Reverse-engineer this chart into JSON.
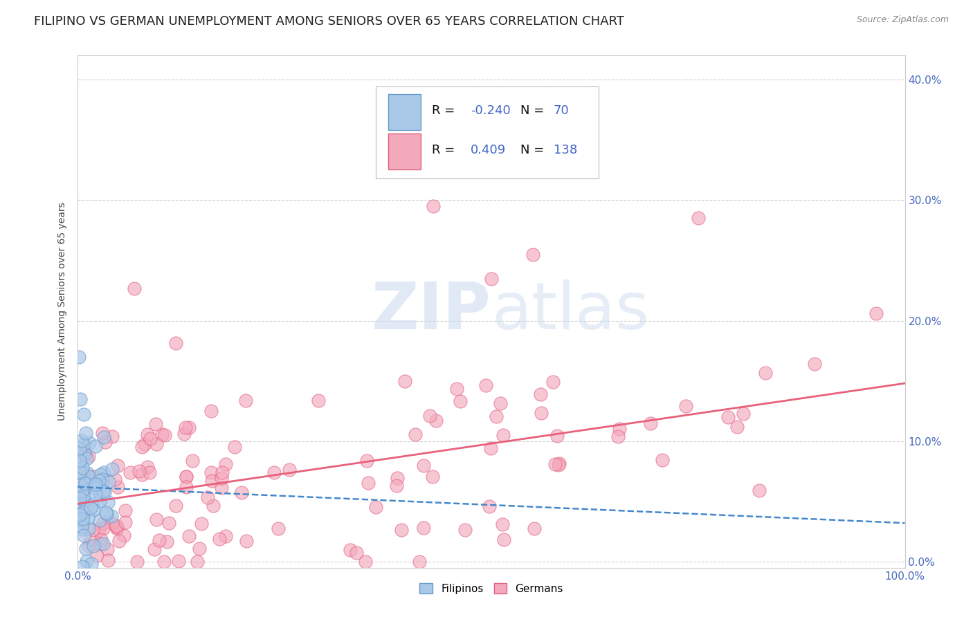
{
  "title": "FILIPINO VS GERMAN UNEMPLOYMENT AMONG SENIORS OVER 65 YEARS CORRELATION CHART",
  "source": "Source: ZipAtlas.com",
  "ylabel": "Unemployment Among Seniors over 65 years",
  "xlim": [
    0,
    1.0
  ],
  "ylim": [
    -0.005,
    0.42
  ],
  "xticks": [
    0.0,
    1.0
  ],
  "xticklabels": [
    "0.0%",
    "100.0%"
  ],
  "yticks": [
    0.0,
    0.1,
    0.2,
    0.3,
    0.4
  ],
  "yticklabels": [
    "0.0%",
    "10.0%",
    "20.0%",
    "30.0%",
    "40.0%"
  ],
  "filipino_color": "#aac8e8",
  "german_color": "#f4a8bc",
  "filipino_edge": "#6699cc",
  "german_edge": "#e06080",
  "trend_filipino_color": "#4488cc",
  "trend_german_color": "#e8607a",
  "R_filipino": -0.24,
  "N_filipino": 70,
  "R_german": 0.409,
  "N_german": 138,
  "watermark_zip": "ZIP",
  "watermark_atlas": "atlas",
  "background_color": "#ffffff",
  "grid_color": "#cccccc",
  "title_fontsize": 13,
  "axis_label_fontsize": 10,
  "tick_fontsize": 11,
  "legend_fontsize": 13
}
